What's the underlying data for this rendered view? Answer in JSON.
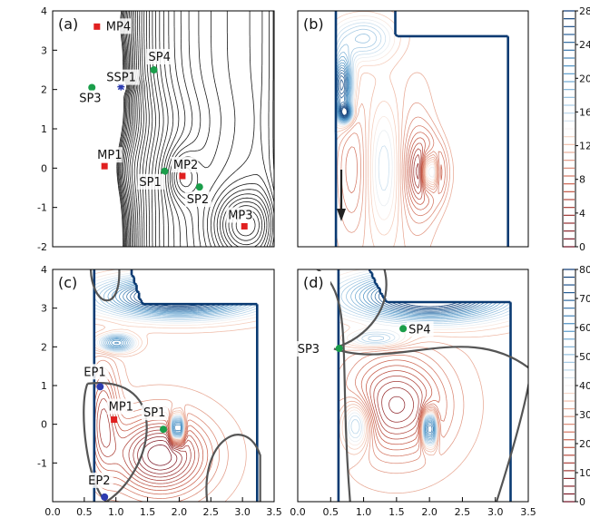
{
  "chart_data": [
    {
      "type": "contour",
      "panel_label": "(a)",
      "xlim": [
        0,
        3.5
      ],
      "ylim": [
        -2,
        4
      ],
      "x_ticks": [],
      "y_ticks": [
        "4",
        "3",
        "2",
        "1",
        "0",
        "-1",
        "-2"
      ],
      "colorbar": null,
      "points": [
        {
          "label": "MP4",
          "x": 0.7,
          "y": 3.6,
          "kind": "minimum",
          "color": "#e02020"
        },
        {
          "label": "SSP1",
          "x": 1.08,
          "y": 2.07,
          "kind": "second-order-saddle",
          "color": "#2d3cb0"
        },
        {
          "label": "SP4",
          "x": 1.6,
          "y": 2.5,
          "kind": "saddle",
          "color": "#1a9e4a"
        },
        {
          "label": "SP3",
          "x": 0.62,
          "y": 2.05,
          "kind": "saddle",
          "color": "#1a9e4a"
        },
        {
          "label": "MP1",
          "x": 0.82,
          "y": 0.05,
          "kind": "minimum",
          "color": "#e02020"
        },
        {
          "label": "SP1",
          "x": 1.77,
          "y": -0.08,
          "kind": "saddle",
          "color": "#1a9e4a"
        },
        {
          "label": "MP2",
          "x": 2.05,
          "y": -0.2,
          "kind": "minimum",
          "color": "#e02020"
        },
        {
          "label": "SP2",
          "x": 2.32,
          "y": -0.48,
          "kind": "saddle",
          "color": "#1a9e4a"
        },
        {
          "label": "MP3",
          "x": 3.03,
          "y": -1.48,
          "kind": "minimum",
          "color": "#e02020"
        }
      ]
    },
    {
      "type": "contour",
      "panel_label": "(b)",
      "xlim": [
        0,
        3.5
      ],
      "ylim": [
        -2,
        4
      ],
      "x_ticks": [],
      "y_ticks": [],
      "colorbar": {
        "ticks": [
          "28",
          "24",
          "20",
          "16",
          "12",
          "8",
          "4",
          "0"
        ],
        "colormap": "red-white-blue"
      },
      "annotations": [
        {
          "kind": "arrow",
          "direction": "down"
        }
      ],
      "points": []
    },
    {
      "type": "contour",
      "panel_label": "(c)",
      "xlim": [
        0,
        3.5
      ],
      "ylim": [
        -2,
        4
      ],
      "x_ticks": [
        "0.0",
        "0.5",
        "1.0",
        "1.5",
        "2.0",
        "2.5",
        "3.0",
        "3.5"
      ],
      "y_ticks": [
        "4",
        "3",
        "2",
        "1",
        "0",
        "-1"
      ],
      "colorbar": null,
      "points": [
        {
          "label": "EP1",
          "x": 0.75,
          "y": 0.97,
          "kind": "extremal",
          "color": "#2d3cb0"
        },
        {
          "label": "MP1",
          "x": 0.97,
          "y": 0.12,
          "kind": "minimum",
          "color": "#e02020"
        },
        {
          "label": "SP1",
          "x": 1.75,
          "y": -0.13,
          "kind": "saddle",
          "color": "#1a9e4a"
        },
        {
          "label": "EP2",
          "x": 0.82,
          "y": -1.88,
          "kind": "extremal",
          "color": "#2d3cb0"
        }
      ]
    },
    {
      "type": "contour",
      "panel_label": "(d)",
      "xlim": [
        0,
        3.5
      ],
      "ylim": [
        -2,
        4
      ],
      "x_ticks": [
        "0.0",
        "0.5",
        "1.0",
        "1.5",
        "2.0",
        "2.5",
        "3.0",
        "3.5"
      ],
      "y_ticks": [],
      "colorbar": {
        "ticks": [
          "80",
          "70",
          "60",
          "50",
          "40",
          "30",
          "20",
          "10",
          "0"
        ],
        "colormap": "red-white-blue"
      },
      "points": [
        {
          "label": "SP3",
          "x": 0.63,
          "y": 1.96,
          "kind": "saddle",
          "color": "#1a9e4a"
        },
        {
          "label": "SP4",
          "x": 1.6,
          "y": 2.47,
          "kind": "saddle",
          "color": "#1a9e4a"
        }
      ]
    }
  ]
}
